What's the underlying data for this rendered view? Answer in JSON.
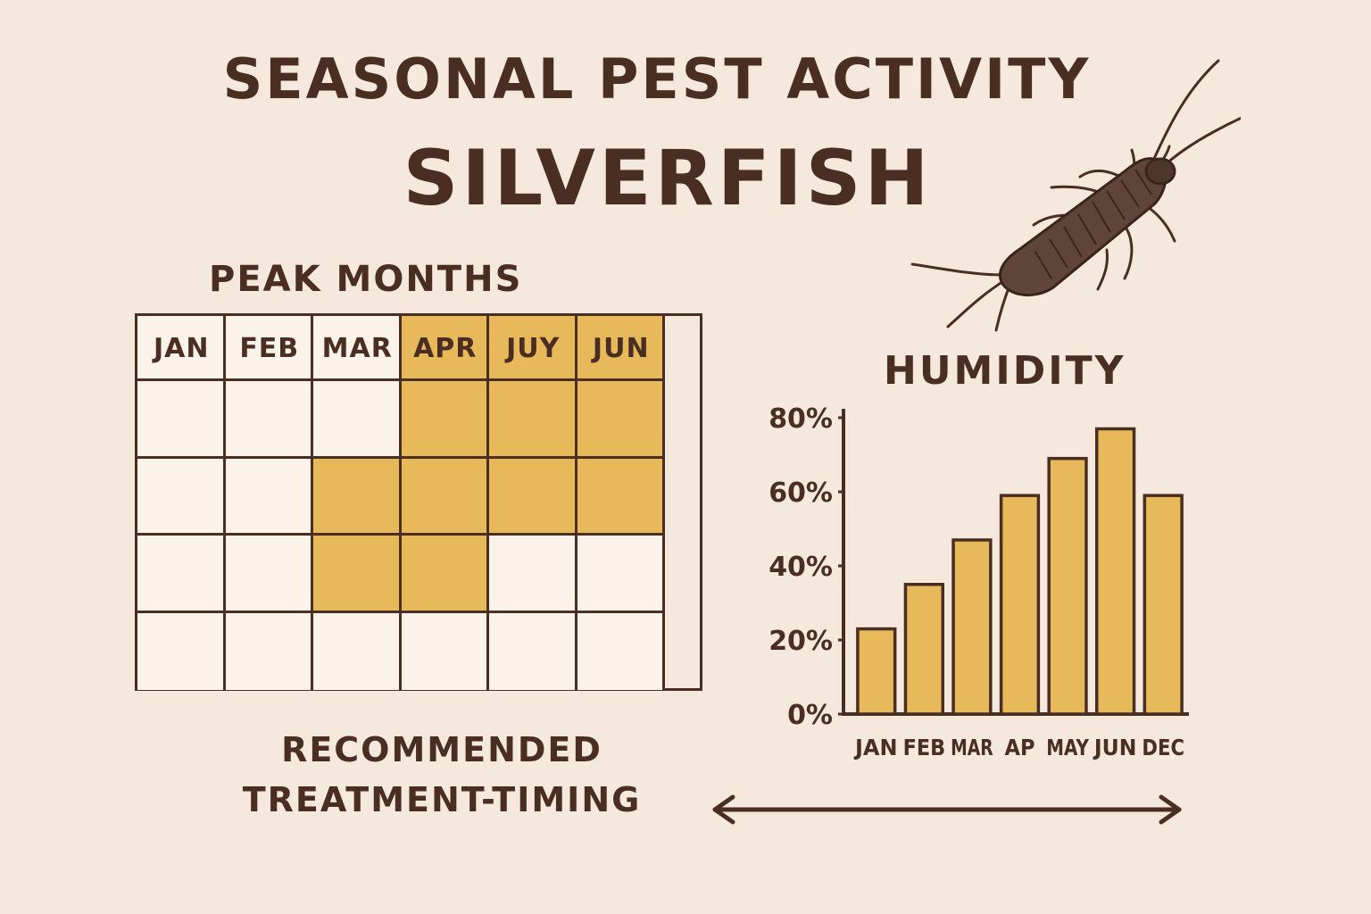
{
  "title": "SEASONAL PEST ACTIVITY",
  "subtitle": "SILVERFISH",
  "peak": {
    "heading": "PEAK MONTHS",
    "months": [
      "JAN",
      "FEB",
      "MAR",
      "APR",
      "JUY",
      "JUN"
    ],
    "header_highlight": [
      false,
      false,
      false,
      true,
      true,
      true
    ],
    "grid": [
      [
        false,
        false,
        false,
        true,
        true,
        true
      ],
      [
        false,
        false,
        true,
        true,
        true,
        true
      ],
      [
        false,
        false,
        true,
        true,
        false,
        false
      ],
      [
        false,
        false,
        false,
        false,
        false,
        false
      ]
    ]
  },
  "recommended": {
    "line1": "RECOMMENDED",
    "line2": "TREATMENT-TIMING"
  },
  "colors": {
    "background": "#f4e9dc",
    "ink": "#4a2e22",
    "highlight": "#e8b95a",
    "cell": "#fbf3ea"
  },
  "chart_data": {
    "type": "bar",
    "title": "HUMIDITY",
    "categories": [
      "JAN",
      "FEB",
      "MAR",
      "AP",
      "MAY",
      "JUN",
      "DEC"
    ],
    "values": [
      23,
      35,
      47,
      59,
      69,
      77,
      59
    ],
    "yticks": [
      "0%",
      "20%",
      "40%",
      "60%",
      "80%"
    ],
    "ytick_values": [
      0,
      20,
      40,
      60,
      80
    ],
    "ylim": [
      0,
      80
    ],
    "grid": false,
    "bar_color": "#e8b95a"
  },
  "icons": {
    "insect": "silverfish-icon",
    "arrow": "double-arrow-icon"
  }
}
